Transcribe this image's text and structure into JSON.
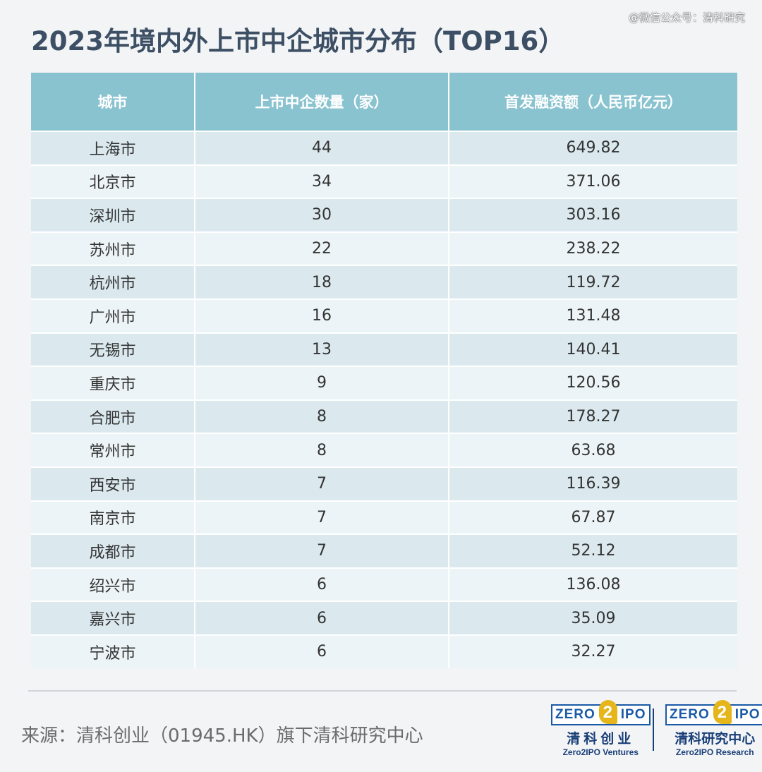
{
  "watermark": "@微信公众号：清科研究",
  "chart_data": {
    "type": "table",
    "title": "2023年境内外上市中企城市分布（TOP16）",
    "columns": [
      "城市",
      "上市中企数量（家）",
      "首发融资额（人民币亿元）"
    ],
    "rows": [
      [
        "上海市",
        "44",
        "649.82"
      ],
      [
        "北京市",
        "34",
        "371.06"
      ],
      [
        "深圳市",
        "30",
        "303.16"
      ],
      [
        "苏州市",
        "22",
        "238.22"
      ],
      [
        "杭州市",
        "18",
        "119.72"
      ],
      [
        "广州市",
        "16",
        "131.48"
      ],
      [
        "无锡市",
        "13",
        "140.41"
      ],
      [
        "重庆市",
        "9",
        "120.56"
      ],
      [
        "合肥市",
        "8",
        "178.27"
      ],
      [
        "常州市",
        "8",
        "63.68"
      ],
      [
        "西安市",
        "7",
        "116.39"
      ],
      [
        "南京市",
        "7",
        "67.87"
      ],
      [
        "成都市",
        "7",
        "52.12"
      ],
      [
        "绍兴市",
        "6",
        "136.08"
      ],
      [
        "嘉兴市",
        "6",
        "35.09"
      ],
      [
        "宁波市",
        "6",
        "32.27"
      ]
    ]
  },
  "footer": {
    "source": "来源：清科创业（01945.HK）旗下清科研究中心",
    "logos": [
      {
        "box_left": "ZERO",
        "box_mid": "2",
        "box_right": "IPO",
        "cn": "清科创业",
        "en": "Zero2IPO Ventures"
      },
      {
        "box_left": "ZERO",
        "box_mid": "2",
        "box_right": "IPO",
        "cn": "清科研究中心",
        "en": "Zero2IPO Research"
      }
    ]
  },
  "colors": {
    "title": "#3d4f64",
    "header_bg": "#8ac3d0",
    "row_odd": "#dbe9ef",
    "row_even": "#edf4f7",
    "logo_blue": "#1a5aa6",
    "logo_gold": "#e5b51a"
  }
}
